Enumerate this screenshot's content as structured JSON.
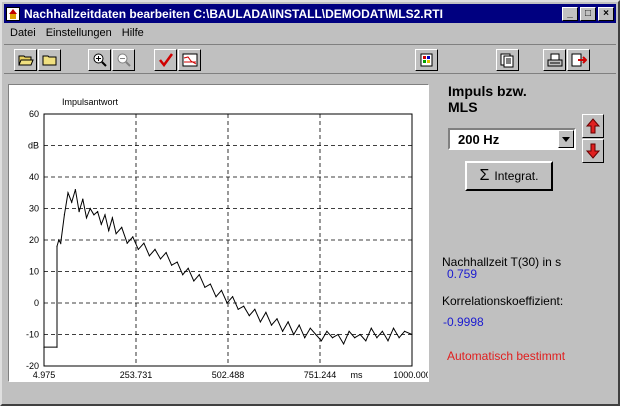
{
  "window": {
    "title": "Nachhallzeitdaten bearbeiten C:\\BAULADA\\INSTALL\\DEMODAT\\MLS2.RTI"
  },
  "menu": [
    "Datei",
    "Einstellungen",
    "Hilfe"
  ],
  "toolbar": {
    "buttons": [
      "open-folder-icon",
      "folder-icon",
      "zoom-in-icon",
      "zoom-out-icon",
      "check-icon",
      "curve-icon",
      "palette-icon",
      "copy-icon",
      "print-icon",
      "exit-icon"
    ]
  },
  "side": {
    "heading_line1": "Impuls bzw.",
    "heading_line2": "MLS",
    "band_selected": "200 Hz",
    "integrate_label": "Integrat.",
    "reverb_label": "Nachhallzeit T(30) in s",
    "reverb_value": "0.759",
    "corr_label": "Korrelationskoeffizient:",
    "corr_value": "-0.9998",
    "auto_label": "Automatisch bestimmt"
  },
  "colors": {
    "title_bg": "#000080",
    "value_blue": "#1a1ad0",
    "auto_red": "#e02020",
    "plot_line": "#000000"
  },
  "chart_data": {
    "type": "line",
    "title": "Impulsantwort",
    "xlabel": "ms",
    "ylabel": "dB",
    "xlim": [
      4.975,
      1000.0
    ],
    "ylim": [
      -20,
      60
    ],
    "x_ticks": [
      "4.975",
      "253.731",
      "502.488",
      "751.244",
      "1000.000"
    ],
    "y_ticks": [
      "60",
      "50",
      "40",
      "30",
      "20",
      "10",
      "0",
      "-10",
      "-20"
    ],
    "y_tick_text": [
      "60",
      "dB",
      "40",
      "30",
      "20",
      "10",
      "0",
      "-10",
      "-20"
    ],
    "grid": true,
    "series": [
      {
        "x": [
          4.975,
          40,
          40,
          45,
          50,
          60,
          70,
          80,
          90,
          100,
          110,
          120,
          130,
          140,
          150,
          160,
          170,
          180,
          190,
          200,
          215,
          230,
          245,
          260,
          275,
          290,
          305,
          320,
          335,
          350,
          365,
          380,
          395,
          410,
          425,
          440,
          455,
          470,
          485,
          500,
          515,
          530,
          545,
          560,
          575,
          590,
          605,
          620,
          635,
          650,
          665,
          680,
          695,
          710,
          725,
          740,
          755,
          770,
          785,
          800,
          815,
          830,
          845,
          860,
          875,
          890,
          905,
          920,
          935,
          950,
          965,
          980,
          1000
        ],
        "y": [
          -14,
          -14,
          18,
          20,
          19,
          28,
          35,
          32,
          36,
          29,
          33,
          27,
          30,
          28,
          29,
          25,
          28,
          23,
          27,
          22,
          24,
          19,
          21,
          17,
          19,
          15,
          17,
          14,
          16,
          12,
          13,
          9,
          11,
          7,
          9,
          5,
          6,
          2,
          4,
          0,
          2,
          -2,
          -1,
          -4,
          -2,
          -6,
          -3,
          -7,
          -5,
          -9,
          -6,
          -10,
          -7,
          -11,
          -8,
          -10,
          -12,
          -9,
          -11,
          -10,
          -13,
          -9,
          -11,
          -10,
          -12,
          -8,
          -11,
          -9,
          -12,
          -8,
          -11,
          -9,
          -10
        ]
      }
    ]
  }
}
